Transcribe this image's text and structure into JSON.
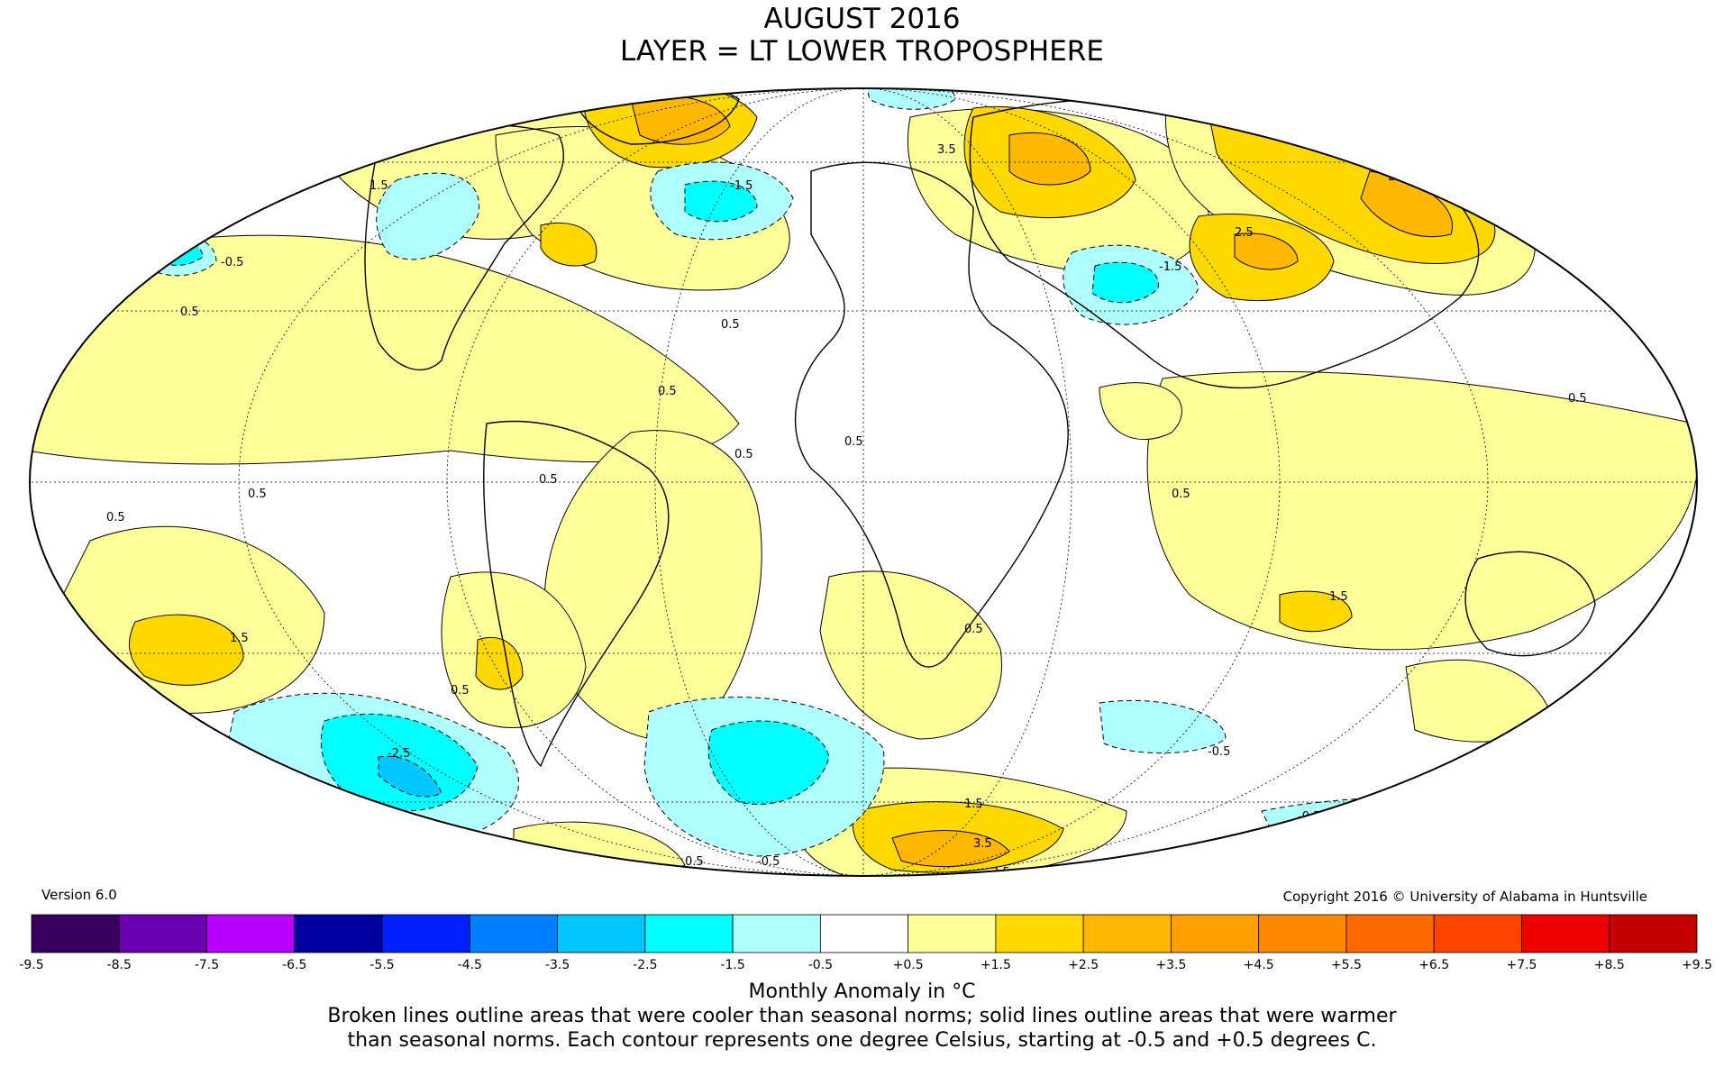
{
  "header": {
    "title_line1": "AUGUST 2016",
    "title_line2": "LAYER = LT LOWER TROPOSPHERE"
  },
  "footer": {
    "version": "Version 6.0",
    "copyright": "Copyright 2016 © University of Alabama in Huntsville",
    "units_label": "Monthly Anomaly in °C",
    "note_line1": "Broken lines outline areas that were cooler than seasonal norms; solid lines outline areas that were warmer",
    "note_line2": "than seasonal norms. Each contour represents one degree Celsius, starting at -0.5 and +0.5 degrees C."
  },
  "colorbar": {
    "ticks": [
      "-9.5",
      "-8.5",
      "-7.5",
      "-6.5",
      "-5.5",
      "-4.5",
      "-3.5",
      "-2.5",
      "-1.5",
      "-0.5",
      "+0.5",
      "+1.5",
      "+2.5",
      "+3.5",
      "+4.5",
      "+5.5",
      "+6.5",
      "+7.5",
      "+8.5",
      "+9.5"
    ],
    "colors": [
      "#3a0060",
      "#6a00b0",
      "#b800ff",
      "#0000a0",
      "#0020ff",
      "#0080ff",
      "#00c8ff",
      "#00ffff",
      "#b0ffff",
      "#ffffff",
      "#ffff99",
      "#ffd800",
      "#ffb800",
      "#ffa000",
      "#ff8800",
      "#ff6a00",
      "#ff4400",
      "#ee0000",
      "#c40000"
    ]
  },
  "map": {
    "projection": "Mollweide",
    "anomaly_colors": {
      "warm_1": "#ffff99",
      "warm_2": "#ffd800",
      "warm_3": "#ffb800",
      "warm_4": "#ffa000",
      "cool_1": "#b0ffff",
      "cool_2": "#00ffff",
      "cool_3": "#00c8ff",
      "neutral": "#ffffff"
    },
    "contour_labels": [
      "0.5",
      "1.5",
      "2.5",
      "3.5",
      "-0.5",
      "-1.5",
      "-2.5"
    ]
  }
}
